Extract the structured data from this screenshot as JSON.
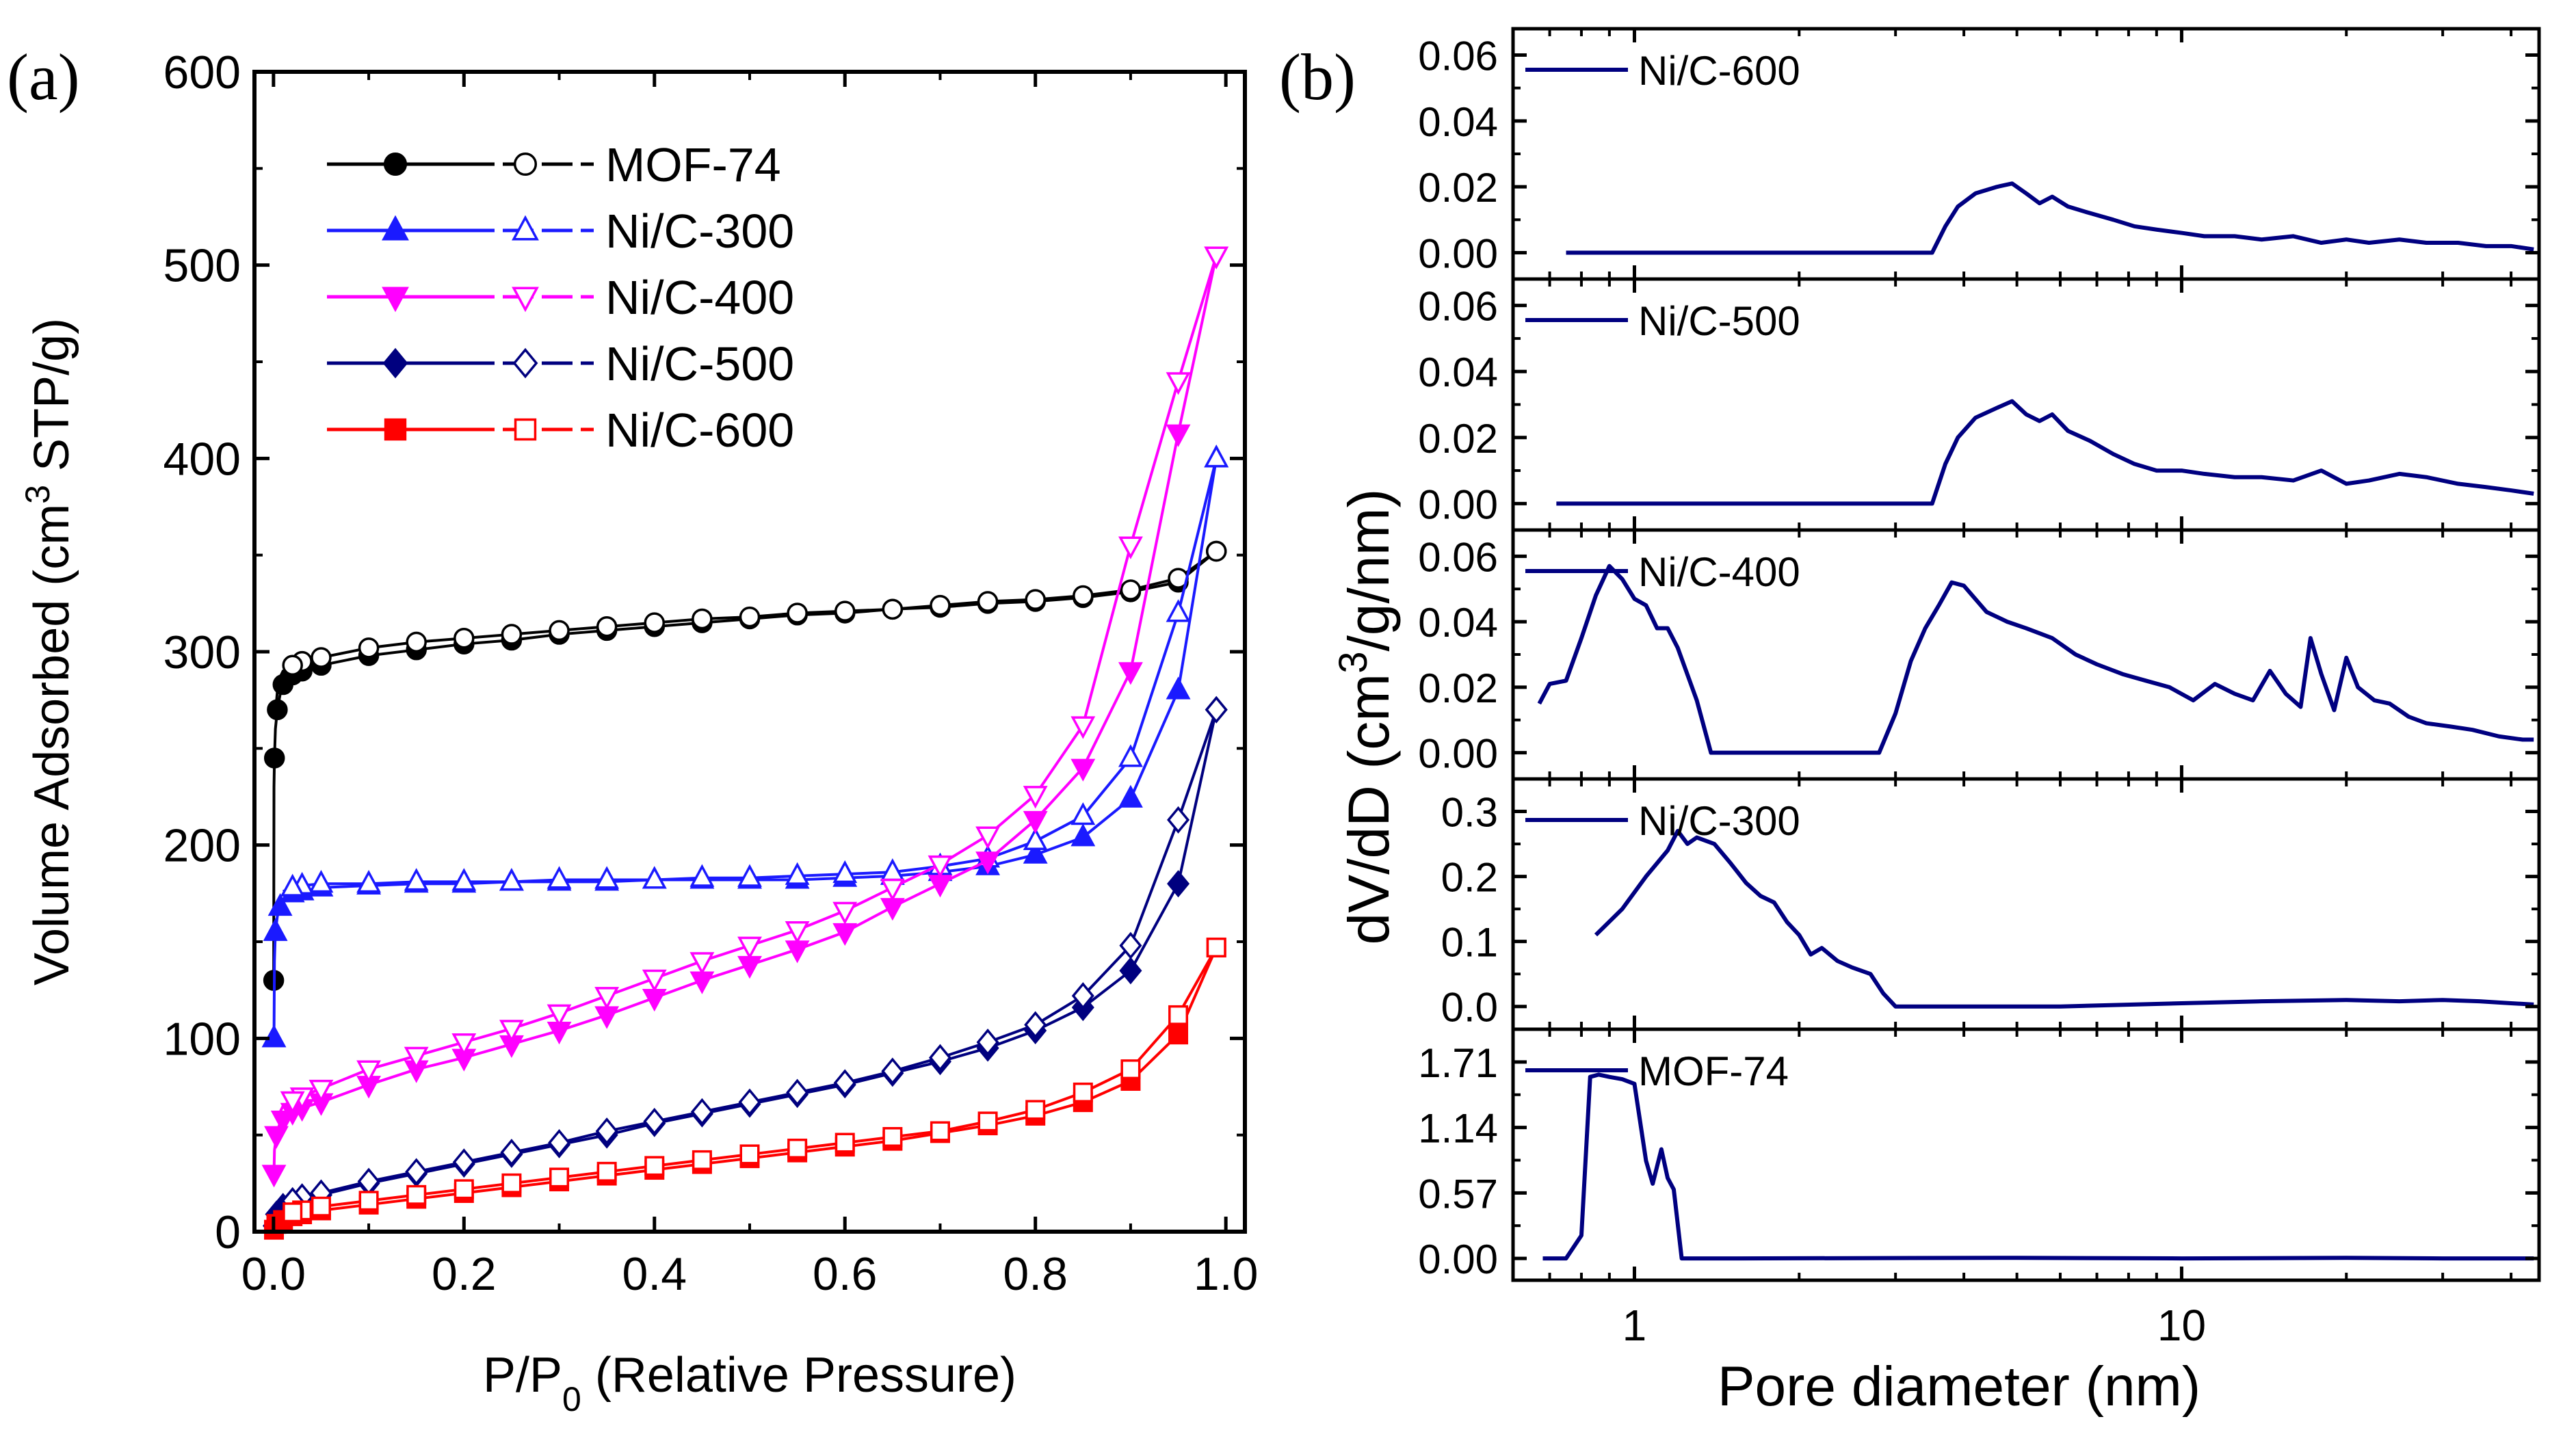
{
  "chart_data": [
    {
      "panel": "(a)",
      "type": "line",
      "xlabel_main": "P/P",
      "xlabel_sub": "0",
      "xlabel_rest": " (Relative Pressure)",
      "ylabel_pre": "Volume Adsorbed (cm",
      "ylabel_sup": "3",
      "ylabel_post": " STP/g)",
      "xlim": [
        -0.02,
        1.02
      ],
      "ylim": [
        0,
        600
      ],
      "xticks": [
        "0.0",
        "0.2",
        "0.4",
        "0.6",
        "0.8",
        "1.0"
      ],
      "yticks": [
        "0",
        "100",
        "200",
        "300",
        "400",
        "500",
        "600"
      ],
      "series": [
        {
          "name": "MOF-74",
          "color": "#000000",
          "marker": "circle",
          "ads_x": [
            0.0002,
            0.0005,
            0.001,
            0.002,
            0.004,
            0.007,
            0.01,
            0.015,
            0.02,
            0.03,
            0.05,
            0.1,
            0.15,
            0.2,
            0.25,
            0.3,
            0.35,
            0.4,
            0.45,
            0.5,
            0.55,
            0.6,
            0.65,
            0.7,
            0.75,
            0.8,
            0.85,
            0.9,
            0.95,
            0.99
          ],
          "ads_y": [
            130,
            230,
            245,
            260,
            270,
            278,
            283,
            286,
            288,
            290,
            293,
            298,
            301,
            304,
            306,
            309,
            311,
            313,
            315,
            317,
            319,
            320,
            322,
            323,
            325,
            326,
            328,
            331,
            336,
            352
          ],
          "des_x": [
            0.99,
            0.95,
            0.9,
            0.85,
            0.8,
            0.75,
            0.7,
            0.65,
            0.6,
            0.55,
            0.5,
            0.45,
            0.4,
            0.35,
            0.3,
            0.25,
            0.2,
            0.15,
            0.1,
            0.05,
            0.03,
            0.02,
            0.01,
            0.005,
            0.002
          ],
          "des_y": [
            352,
            338,
            332,
            329,
            327,
            326,
            324,
            322,
            321,
            320,
            318,
            317,
            315,
            313,
            311,
            309,
            307,
            305,
            302,
            297,
            295,
            293,
            290,
            285,
            268
          ]
        },
        {
          "name": "Ni/C-300",
          "color": "#1a1aff",
          "marker": "triangle-up",
          "ads_x": [
            0.0005,
            0.001,
            0.002,
            0.004,
            0.007,
            0.01,
            0.02,
            0.03,
            0.05,
            0.1,
            0.15,
            0.2,
            0.25,
            0.3,
            0.35,
            0.4,
            0.45,
            0.5,
            0.55,
            0.6,
            0.65,
            0.7,
            0.75,
            0.8,
            0.85,
            0.9,
            0.95,
            0.99
          ],
          "ads_y": [
            100,
            140,
            155,
            163,
            168,
            172,
            175,
            176,
            178,
            179,
            180,
            180,
            181,
            181,
            181,
            182,
            182,
            182,
            182,
            183,
            184,
            186,
            189,
            195,
            204,
            224,
            280,
            400
          ],
          "des_x": [
            0.99,
            0.95,
            0.9,
            0.85,
            0.8,
            0.75,
            0.7,
            0.65,
            0.6,
            0.55,
            0.5,
            0.45,
            0.4,
            0.35,
            0.3,
            0.25,
            0.2,
            0.15,
            0.1,
            0.05,
            0.03,
            0.02,
            0.01
          ],
          "des_y": [
            400,
            320,
            245,
            215,
            202,
            193,
            189,
            186,
            185,
            184,
            183,
            183,
            182,
            182,
            182,
            181,
            181,
            181,
            180,
            180,
            179,
            178,
            176
          ]
        },
        {
          "name": "Ni/C-400",
          "color": "#ff00ff",
          "marker": "triangle-down",
          "ads_x": [
            0.0005,
            0.001,
            0.003,
            0.006,
            0.01,
            0.02,
            0.03,
            0.05,
            0.1,
            0.15,
            0.2,
            0.25,
            0.3,
            0.35,
            0.4,
            0.45,
            0.5,
            0.55,
            0.6,
            0.65,
            0.7,
            0.75,
            0.8,
            0.85,
            0.9,
            0.95,
            0.99
          ],
          "ads_y": [
            30,
            42,
            50,
            55,
            58,
            62,
            64,
            67,
            76,
            84,
            90,
            97,
            104,
            112,
            121,
            130,
            138,
            146,
            155,
            168,
            180,
            192,
            213,
            240,
            290,
            413,
            505
          ],
          "des_x": [
            0.99,
            0.95,
            0.9,
            0.85,
            0.8,
            0.75,
            0.7,
            0.65,
            0.6,
            0.55,
            0.5,
            0.45,
            0.4,
            0.35,
            0.3,
            0.25,
            0.2,
            0.15,
            0.1,
            0.05,
            0.03,
            0.02,
            0.01,
            0.005
          ],
          "des_y": [
            505,
            440,
            355,
            262,
            226,
            205,
            190,
            178,
            166,
            156,
            148,
            140,
            131,
            122,
            113,
            105,
            98,
            91,
            84,
            74,
            70,
            68,
            65,
            60
          ]
        },
        {
          "name": "Ni/C-500",
          "color": "#00007f",
          "marker": "diamond",
          "ads_x": [
            0.0005,
            0.001,
            0.003,
            0.006,
            0.01,
            0.02,
            0.03,
            0.05,
            0.1,
            0.15,
            0.2,
            0.25,
            0.3,
            0.35,
            0.4,
            0.45,
            0.5,
            0.55,
            0.6,
            0.65,
            0.7,
            0.75,
            0.8,
            0.85,
            0.9,
            0.95,
            0.99
          ],
          "ads_y": [
            3,
            6,
            9,
            11,
            13,
            15,
            17,
            19,
            25,
            30,
            35,
            40,
            45,
            50,
            56,
            61,
            66,
            71,
            76,
            82,
            88,
            95,
            104,
            116,
            135,
            180,
            270
          ],
          "des_x": [
            0.99,
            0.95,
            0.9,
            0.85,
            0.8,
            0.75,
            0.7,
            0.65,
            0.6,
            0.55,
            0.5,
            0.45,
            0.4,
            0.35,
            0.3,
            0.25,
            0.2,
            0.15,
            0.1,
            0.05,
            0.03,
            0.02,
            0.01
          ],
          "des_y": [
            270,
            213,
            148,
            122,
            107,
            98,
            90,
            83,
            77,
            72,
            67,
            62,
            57,
            52,
            46,
            41,
            36,
            31,
            26,
            20,
            18,
            16,
            14
          ]
        },
        {
          "name": "Ni/C-600",
          "color": "#ff0000",
          "marker": "square",
          "ads_x": [
            0.0005,
            0.001,
            0.003,
            0.006,
            0.01,
            0.02,
            0.03,
            0.05,
            0.1,
            0.15,
            0.2,
            0.25,
            0.3,
            0.35,
            0.4,
            0.45,
            0.5,
            0.55,
            0.6,
            0.65,
            0.7,
            0.75,
            0.8,
            0.85,
            0.9,
            0.95,
            0.99
          ],
          "ads_y": [
            1,
            2,
            4,
            5,
            6,
            8,
            9,
            11,
            14,
            17,
            20,
            23,
            26,
            29,
            32,
            35,
            38,
            41,
            44,
            47,
            51,
            55,
            60,
            67,
            78,
            102,
            147
          ],
          "des_x": [
            0.99,
            0.95,
            0.9,
            0.85,
            0.8,
            0.75,
            0.7,
            0.65,
            0.6,
            0.55,
            0.5,
            0.45,
            0.4,
            0.35,
            0.3,
            0.25,
            0.2,
            0.15,
            0.1,
            0.05,
            0.03,
            0.02,
            0.01
          ],
          "des_y": [
            147,
            112,
            84,
            72,
            63,
            57,
            52,
            49,
            46,
            43,
            40,
            37,
            34,
            31,
            28,
            25,
            22,
            19,
            16,
            13,
            11,
            10,
            8
          ]
        }
      ]
    },
    {
      "panel": "(b)",
      "type": "line",
      "xscale": "log",
      "xlim": [
        0.6,
        45
      ],
      "xticks": [
        "1",
        "10"
      ],
      "xlabel": "Pore diameter (nm)",
      "ylabel_pre": "dV/dD (cm",
      "ylabel_sup": "3",
      "ylabel_post": "/g/nm)",
      "line_color": "#000080",
      "subplots": [
        {
          "name": "Ni/C-600",
          "ylim": [
            -0.008,
            0.068
          ],
          "yticks": [
            "0.00",
            "0.02",
            "0.04",
            "0.06"
          ],
          "ytick_values": [
            0,
            0.02,
            0.04,
            0.06
          ],
          "x": [
            0.75,
            3.5,
            3.7,
            3.9,
            4.2,
            4.6,
            4.9,
            5.2,
            5.5,
            5.8,
            6.2,
            6.8,
            7.5,
            8.2,
            9,
            10,
            11,
            12.5,
            14,
            16,
            18,
            20,
            22,
            25,
            28,
            32,
            36,
            40,
            44
          ],
          "y": [
            0,
            0,
            0.008,
            0.014,
            0.018,
            0.02,
            0.021,
            0.018,
            0.015,
            0.017,
            0.014,
            0.012,
            0.01,
            0.008,
            0.007,
            0.006,
            0.005,
            0.005,
            0.004,
            0.005,
            0.003,
            0.004,
            0.003,
            0.004,
            0.003,
            0.003,
            0.002,
            0.002,
            0.001
          ]
        },
        {
          "name": "Ni/C-500",
          "ylim": [
            -0.008,
            0.068
          ],
          "yticks": [
            "0.00",
            "0.02",
            "0.04",
            "0.06"
          ],
          "ytick_values": [
            0,
            0.02,
            0.04,
            0.06
          ],
          "x": [
            0.72,
            3.5,
            3.7,
            3.9,
            4.2,
            4.6,
            4.9,
            5.2,
            5.5,
            5.8,
            6.2,
            6.8,
            7.5,
            8.2,
            9,
            10,
            11,
            12.5,
            14,
            16,
            18,
            20,
            22,
            25,
            28,
            32,
            36,
            40,
            44
          ],
          "y": [
            0,
            0,
            0.012,
            0.02,
            0.026,
            0.029,
            0.031,
            0.027,
            0.025,
            0.027,
            0.022,
            0.019,
            0.015,
            0.012,
            0.01,
            0.01,
            0.009,
            0.008,
            0.008,
            0.007,
            0.01,
            0.006,
            0.007,
            0.009,
            0.008,
            0.006,
            0.005,
            0.004,
            0.003
          ]
        },
        {
          "name": "Ni/C-400",
          "ylim": [
            -0.008,
            0.068
          ],
          "yticks": [
            "0.00",
            "0.02",
            "0.04",
            "0.06"
          ],
          "ytick_values": [
            0,
            0.02,
            0.04,
            0.06
          ],
          "x": [
            0.67,
            0.7,
            0.75,
            0.8,
            0.85,
            0.9,
            0.95,
            1.0,
            1.05,
            1.1,
            1.15,
            1.2,
            1.3,
            1.38,
            1.45,
            2.8,
            3.0,
            3.2,
            3.4,
            3.6,
            3.8,
            4.0,
            4.4,
            4.8,
            5.2,
            5.8,
            6.4,
            7,
            7.8,
            8.6,
            9.5,
            10.5,
            11.5,
            12.5,
            13.5,
            14.5,
            15.5,
            16.5,
            17.2,
            18,
            19,
            20,
            21,
            22.5,
            24,
            26,
            28,
            31,
            34,
            38,
            42,
            44
          ],
          "y": [
            0.015,
            0.021,
            0.022,
            0.035,
            0.048,
            0.057,
            0.053,
            0.047,
            0.045,
            0.038,
            0.038,
            0.032,
            0.016,
            0,
            0,
            0,
            0.012,
            0.028,
            0.038,
            0.045,
            0.052,
            0.051,
            0.043,
            0.04,
            0.038,
            0.035,
            0.03,
            0.027,
            0.024,
            0.022,
            0.02,
            0.016,
            0.021,
            0.018,
            0.016,
            0.025,
            0.018,
            0.014,
            0.035,
            0.024,
            0.013,
            0.029,
            0.02,
            0.016,
            0.015,
            0.011,
            0.009,
            0.008,
            0.007,
            0.005,
            0.004,
            0.004
          ]
        },
        {
          "name": "Ni/C-300",
          "ylim": [
            -0.035,
            0.35
          ],
          "yticks": [
            "0.0",
            "0.1",
            "0.2",
            "0.3"
          ],
          "ytick_values": [
            0,
            0.1,
            0.2,
            0.3
          ],
          "x": [
            0.85,
            0.95,
            1.05,
            1.15,
            1.2,
            1.25,
            1.3,
            1.4,
            1.5,
            1.6,
            1.7,
            1.8,
            1.9,
            2.0,
            2.1,
            2.2,
            2.35,
            2.5,
            2.7,
            2.85,
            3.0,
            3.5,
            6,
            10,
            14,
            20,
            25,
            30,
            35,
            40,
            44
          ],
          "y": [
            0.11,
            0.15,
            0.2,
            0.24,
            0.27,
            0.25,
            0.26,
            0.25,
            0.22,
            0.19,
            0.17,
            0.16,
            0.13,
            0.11,
            0.08,
            0.09,
            0.07,
            0.06,
            0.05,
            0.02,
            0,
            0,
            0,
            0.005,
            0.008,
            0.01,
            0.008,
            0.01,
            0.008,
            0.005,
            0.003
          ]
        },
        {
          "name": "MOF-74",
          "ylim": [
            -0.19,
            1.995
          ],
          "yticks": [
            "0.00",
            "0.57",
            "1.14",
            "1.71"
          ],
          "ytick_values": [
            0,
            0.57,
            1.14,
            1.71
          ],
          "x": [
            0.68,
            0.75,
            0.8,
            0.83,
            0.86,
            0.9,
            0.95,
            1.0,
            1.05,
            1.08,
            1.12,
            1.15,
            1.18,
            1.22,
            1.5,
            5,
            10,
            20,
            30,
            44
          ],
          "y": [
            0,
            0,
            0.2,
            1.58,
            1.6,
            1.58,
            1.56,
            1.52,
            0.85,
            0.65,
            0.95,
            0.7,
            0.6,
            0,
            0,
            0.005,
            0,
            0.005,
            0,
            0
          ]
        }
      ]
    }
  ]
}
